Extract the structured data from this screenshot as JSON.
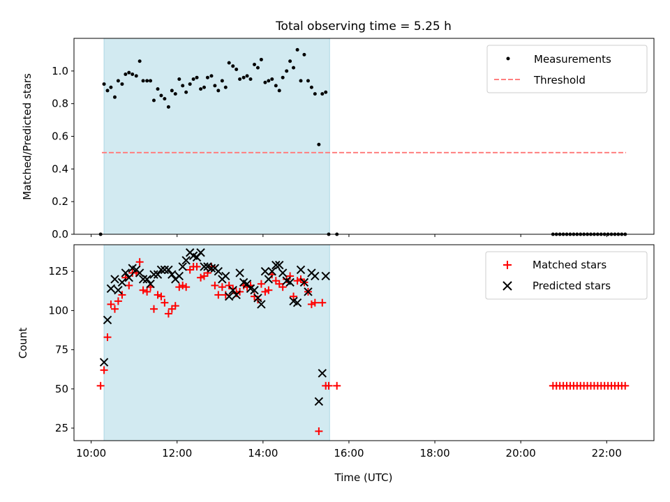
{
  "chart_data": [
    {
      "type": "scatter",
      "title": "Total observing time = 5.25 h",
      "xlabel": "",
      "ylabel": "Matched/Predicted stars",
      "xlim": [
        9.6,
        23.1
      ],
      "ylim": [
        0,
        1.2
      ],
      "yticks": [
        0.0,
        0.2,
        0.4,
        0.6,
        0.8,
        1.0
      ],
      "ytick_labels": [
        "0.0",
        "0.2",
        "0.4",
        "0.6",
        "0.8",
        "1.0"
      ],
      "shaded_interval": {
        "x": [
          10.3,
          15.55
        ],
        "color": "#add8e6"
      },
      "legend": "top-right",
      "series": [
        {
          "name": "Measurements",
          "kind": "points",
          "color": "#000000",
          "x": [
            10.22,
            10.3,
            10.38,
            10.46,
            10.55,
            10.63,
            10.72,
            10.8,
            10.88,
            10.96,
            11.05,
            11.13,
            11.21,
            11.3,
            11.38,
            11.46,
            11.55,
            11.63,
            11.71,
            11.8,
            11.88,
            11.96,
            12.05,
            12.13,
            12.21,
            12.3,
            12.38,
            12.46,
            12.55,
            12.63,
            12.71,
            12.8,
            12.88,
            12.96,
            13.05,
            13.13,
            13.21,
            13.3,
            13.38,
            13.46,
            13.55,
            13.63,
            13.71,
            13.8,
            13.88,
            13.96,
            14.05,
            14.13,
            14.21,
            14.3,
            14.38,
            14.46,
            14.55,
            14.63,
            14.71,
            14.8,
            14.88,
            14.96,
            15.05,
            15.13,
            15.21,
            15.3,
            15.38,
            15.46,
            15.53,
            15.72,
            20.75,
            20.83,
            20.91,
            20.99,
            21.07,
            21.15,
            21.23,
            21.31,
            21.39,
            21.47,
            21.55,
            21.63,
            21.71,
            21.79,
            21.87,
            21.95,
            22.03,
            22.11,
            22.19,
            22.27,
            22.35,
            22.43
          ],
          "y": [
            0.0,
            0.92,
            0.88,
            0.9,
            0.84,
            0.94,
            0.92,
            0.98,
            0.99,
            0.98,
            0.97,
            1.06,
            0.94,
            0.94,
            0.94,
            0.82,
            0.89,
            0.85,
            0.83,
            0.78,
            0.88,
            0.86,
            0.95,
            0.91,
            0.87,
            0.92,
            0.95,
            0.96,
            0.89,
            0.9,
            0.96,
            0.97,
            0.91,
            0.88,
            0.94,
            0.9,
            1.05,
            1.03,
            1.01,
            0.95,
            0.96,
            0.97,
            0.95,
            1.04,
            1.02,
            1.07,
            0.93,
            0.94,
            0.95,
            0.91,
            0.88,
            0.96,
            1.0,
            1.06,
            1.02,
            1.13,
            0.94,
            1.1,
            0.94,
            0.9,
            0.86,
            0.55,
            0.86,
            0.87,
            0.0,
            0.0,
            0.0,
            0.0,
            0.0,
            0.0,
            0.0,
            0.0,
            0.0,
            0.0,
            0.0,
            0.0,
            0.0,
            0.0,
            0.0,
            0.0,
            0.0,
            0.0,
            0.0,
            0.0,
            0.0,
            0.0,
            0.0,
            0.0
          ]
        },
        {
          "name": "Threshold",
          "kind": "dashed-line",
          "color": "#ff7f7f",
          "x": [
            10.25,
            22.45
          ],
          "y": [
            0.5,
            0.5
          ]
        }
      ]
    },
    {
      "type": "scatter",
      "title": "",
      "xlabel": "Time (UTC)",
      "ylabel": "Count",
      "xlim": [
        9.6,
        23.1
      ],
      "ylim": [
        17,
        142
      ],
      "yticks": [
        25,
        50,
        75,
        100,
        125
      ],
      "ytick_labels": [
        "25",
        "50",
        "75",
        "100",
        "125"
      ],
      "xticks": [
        10,
        12,
        14,
        16,
        18,
        20,
        22
      ],
      "xtick_labels": [
        "10:00",
        "12:00",
        "14:00",
        "16:00",
        "18:00",
        "20:00",
        "22:00"
      ],
      "shaded_interval": {
        "x": [
          10.3,
          15.55
        ],
        "color": "#add8e6"
      },
      "legend": "top-right",
      "series": [
        {
          "name": "Matched stars",
          "kind": "plus",
          "color": "#ff0000",
          "x": [
            10.22,
            10.3,
            10.38,
            10.46,
            10.55,
            10.63,
            10.72,
            10.8,
            10.88,
            10.96,
            11.05,
            11.13,
            11.21,
            11.3,
            11.38,
            11.46,
            11.55,
            11.63,
            11.71,
            11.8,
            11.88,
            11.96,
            12.05,
            12.13,
            12.21,
            12.3,
            12.38,
            12.46,
            12.55,
            12.63,
            12.71,
            12.8,
            12.88,
            12.96,
            13.05,
            13.13,
            13.21,
            13.3,
            13.38,
            13.46,
            13.55,
            13.63,
            13.71,
            13.8,
            13.88,
            13.96,
            14.05,
            14.13,
            14.21,
            14.3,
            14.38,
            14.46,
            14.55,
            14.63,
            14.71,
            14.8,
            14.88,
            14.96,
            15.05,
            15.13,
            15.21,
            15.3,
            15.38,
            15.46,
            15.53,
            15.72,
            20.75,
            20.83,
            20.91,
            20.99,
            21.07,
            21.15,
            21.23,
            21.31,
            21.39,
            21.47,
            21.55,
            21.63,
            21.71,
            21.79,
            21.87,
            21.95,
            22.03,
            22.11,
            22.19,
            22.27,
            22.35,
            22.43
          ],
          "y": [
            52,
            62,
            83,
            104,
            101,
            106,
            110,
            121,
            116,
            124,
            124,
            131,
            113,
            112,
            115,
            101,
            110,
            109,
            105,
            98,
            101,
            103,
            115,
            116,
            115,
            126,
            128,
            128,
            121,
            122,
            124,
            128,
            116,
            110,
            115,
            110,
            116,
            114,
            111,
            112,
            116,
            115,
            116,
            109,
            107,
            117,
            112,
            113,
            123,
            119,
            117,
            115,
            120,
            122,
            109,
            119,
            120,
            118,
            112,
            104,
            105,
            23,
            105,
            52,
            52,
            52,
            52,
            52,
            52,
            52,
            52,
            52,
            52,
            52,
            52,
            52,
            52,
            52,
            52,
            52,
            52,
            52,
            52,
            52,
            52,
            52,
            52,
            52
          ]
        },
        {
          "name": "Predicted stars",
          "kind": "x",
          "color": "#000000",
          "x": [
            10.3,
            10.38,
            10.46,
            10.55,
            10.63,
            10.72,
            10.8,
            10.88,
            10.96,
            11.05,
            11.13,
            11.21,
            11.3,
            11.38,
            11.46,
            11.55,
            11.63,
            11.71,
            11.8,
            11.88,
            11.96,
            12.05,
            12.13,
            12.21,
            12.3,
            12.38,
            12.46,
            12.55,
            12.63,
            12.71,
            12.8,
            12.88,
            12.96,
            13.05,
            13.13,
            13.21,
            13.3,
            13.38,
            13.46,
            13.55,
            13.63,
            13.71,
            13.8,
            13.88,
            13.96,
            14.05,
            14.13,
            14.21,
            14.3,
            14.38,
            14.46,
            14.55,
            14.63,
            14.71,
            14.8,
            14.88,
            14.96,
            15.05,
            15.13,
            15.21,
            15.3,
            15.38,
            15.46
          ],
          "y": [
            67,
            94,
            114,
            120,
            113,
            118,
            124,
            121,
            127,
            126,
            124,
            120,
            120,
            117,
            123,
            123,
            126,
            126,
            126,
            123,
            120,
            122,
            128,
            132,
            137,
            135,
            134,
            137,
            128,
            128,
            127,
            127,
            125,
            120,
            122,
            109,
            113,
            110,
            124,
            118,
            117,
            114,
            113,
            108,
            104,
            125,
            120,
            125,
            129,
            129,
            124,
            119,
            118,
            106,
            105,
            126,
            118,
            112,
            124,
            122,
            42,
            60,
            122
          ]
        }
      ]
    }
  ]
}
